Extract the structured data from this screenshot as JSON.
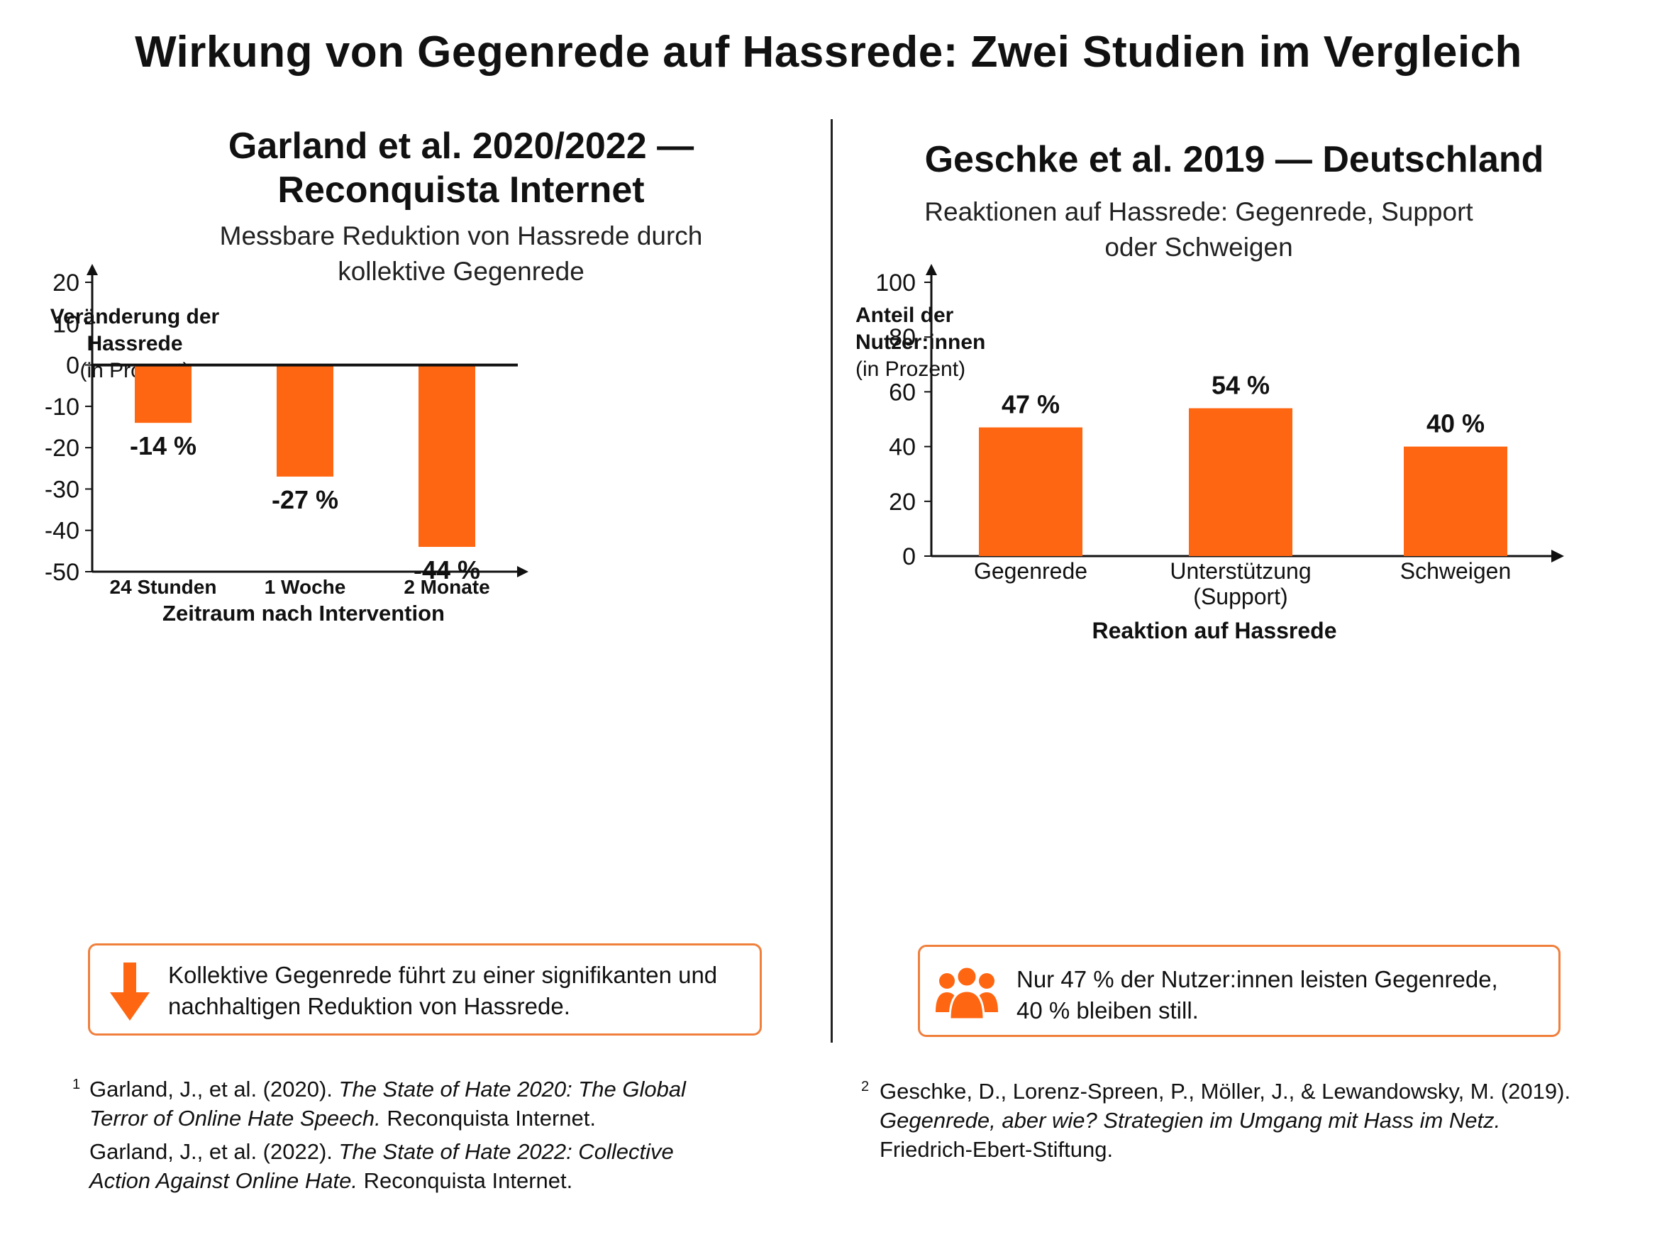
{
  "title": "Wirkung von Gegenrede auf Hassrede: Zwei Studien im Vergleich",
  "colors": {
    "bar": "#ff6611",
    "accent_border": "#f07f3c",
    "axis": "#111111"
  },
  "left": {
    "title_line1": "Garland et al. 2020/2022 —",
    "title_line2": "Reconquista Internet",
    "subtitle_line1": "Messbare Reduktion von Hassrede durch",
    "subtitle_line2": "kollektive Gegenrede",
    "ylabel_line1": "Veränderung der",
    "ylabel_line2": "Hassrede",
    "ylabel_unit": "(in Prozent)",
    "callout_icon": "arrow-down-icon",
    "callout_line1": "Kollektive Gegenrede führt zu einer signifikanten und",
    "callout_line2": "nachhaltigen Reduktion von Hassrede.",
    "ref_mark": "1",
    "ref1_a": "Garland, J., et al. (2020).",
    "ref1_b": "The State of Hate 2020: The Global",
    "ref1_c": "Terror of Online Hate Speech.",
    "ref1_d": "Reconquista Internet.",
    "ref2_a": "Garland, J., et al. (2022).",
    "ref2_b": "The State of Hate 2022: Collective",
    "ref2_c": "Action Against Online Hate.",
    "ref2_d": "Reconquista Internet."
  },
  "right": {
    "title": "Geschke et al. 2019 — Deutschland",
    "subtitle_line1": "Reaktionen auf Hassrede: Gegenrede, Support",
    "subtitle_line2": "oder Schweigen",
    "ylabel_line1": "Anteil der",
    "ylabel_line2": "Nutzer:innen",
    "ylabel_unit": "(in Prozent)",
    "callout_icon": "people-group-icon",
    "callout_line1": "Nur 47 % der Nutzer:innen leisten Gegenrede,",
    "callout_line2": "40 % bleiben still.",
    "ref_mark": "2",
    "ref_a": "Geschke, D., Lorenz-Spreen, P., Möller, J., & Lewandowsky, M. (2019).",
    "ref_b": "Gegenrede, aber wie? Strategien im Umgang mit Hass im Netz.",
    "ref_c": "Friedrich-Ebert-Stiftung."
  },
  "chart_data": [
    {
      "type": "bar",
      "title": "Garland et al. 2020/2022 — Reconquista Internet",
      "subtitle": "Messbare Reduktion von Hassrede durch kollektive Gegenrede",
      "categories": [
        "24 Stunden",
        "1 Woche",
        "2 Monate"
      ],
      "values": [
        -14,
        -27,
        -44
      ],
      "value_labels": [
        "-14 %",
        "-27 %",
        "-44 %"
      ],
      "xlabel": "Zeitraum nach Intervention",
      "ylabel": "Veränderung der Hassrede (in Prozent)",
      "ylim": [
        -50,
        20
      ],
      "yticks": [
        20,
        10,
        0,
        -10,
        -20,
        -30,
        -40,
        -50
      ],
      "grid": false,
      "legend": "none"
    },
    {
      "type": "bar",
      "title": "Geschke et al. 2019 — Deutschland",
      "subtitle": "Reaktionen auf Hassrede: Gegenrede, Support oder Schweigen",
      "categories": [
        "Gegenrede",
        "Unterstützung (Support)",
        "Schweigen"
      ],
      "category_lines": [
        [
          "Gegenrede"
        ],
        [
          "Unterstützung",
          "(Support)"
        ],
        [
          "Schweigen"
        ]
      ],
      "values": [
        47,
        54,
        40
      ],
      "value_labels": [
        "47 %",
        "54 %",
        "40 %"
      ],
      "xlabel": "Reaktion auf Hassrede",
      "ylabel": "Anteil der Nutzer:innen (in Prozent)",
      "ylim": [
        0,
        100
      ],
      "yticks": [
        100,
        80,
        60,
        40,
        20,
        0
      ],
      "grid": false,
      "legend": "none"
    }
  ]
}
